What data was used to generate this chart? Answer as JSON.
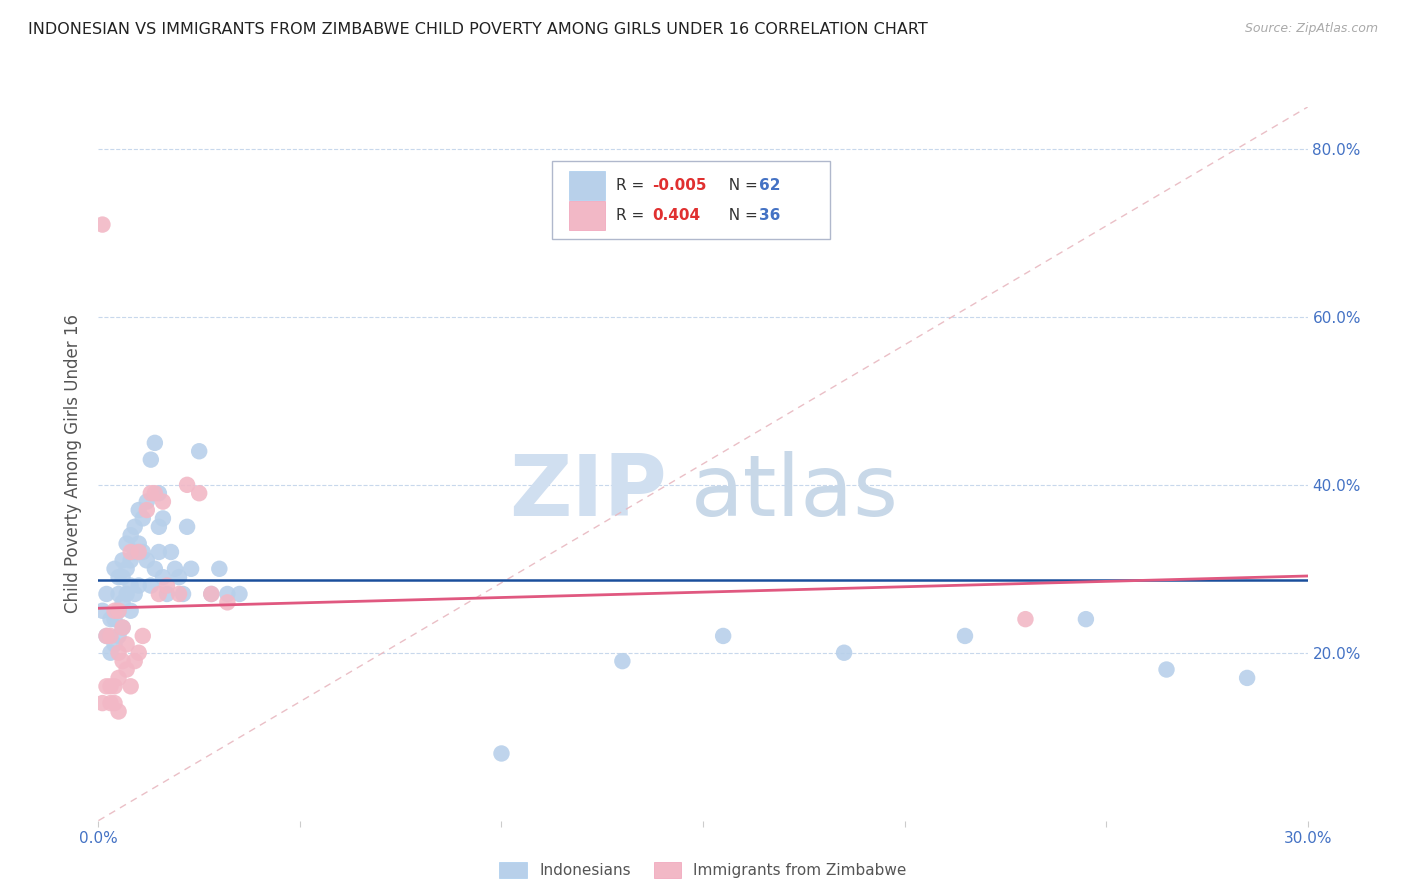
{
  "title": "INDONESIAN VS IMMIGRANTS FROM ZIMBABWE CHILD POVERTY AMONG GIRLS UNDER 16 CORRELATION CHART",
  "source": "Source: ZipAtlas.com",
  "ylabel": "Child Poverty Among Girls Under 16",
  "watermark_zip": "ZIP",
  "watermark_atlas": "atlas",
  "indonesian_color": "#b8d0ea",
  "zimbabwe_color": "#f2b8c6",
  "indonesian_line_color": "#1a4f9c",
  "zimbabwe_line_color": "#e05880",
  "diagonal_color": "#e8b8c0",
  "xlim": [
    0.0,
    0.3
  ],
  "ylim": [
    0.0,
    0.85
  ],
  "indonesian_x": [
    0.001,
    0.002,
    0.002,
    0.003,
    0.003,
    0.004,
    0.004,
    0.004,
    0.005,
    0.005,
    0.005,
    0.005,
    0.006,
    0.006,
    0.006,
    0.006,
    0.007,
    0.007,
    0.007,
    0.008,
    0.008,
    0.008,
    0.008,
    0.009,
    0.009,
    0.009,
    0.01,
    0.01,
    0.01,
    0.011,
    0.011,
    0.012,
    0.012,
    0.013,
    0.013,
    0.014,
    0.014,
    0.015,
    0.015,
    0.015,
    0.016,
    0.016,
    0.017,
    0.018,
    0.019,
    0.02,
    0.021,
    0.022,
    0.023,
    0.025,
    0.028,
    0.03,
    0.032,
    0.035,
    0.1,
    0.13,
    0.155,
    0.185,
    0.215,
    0.245,
    0.265,
    0.285
  ],
  "indonesian_y": [
    0.25,
    0.22,
    0.27,
    0.2,
    0.24,
    0.21,
    0.24,
    0.3,
    0.22,
    0.25,
    0.27,
    0.29,
    0.23,
    0.26,
    0.29,
    0.31,
    0.27,
    0.3,
    0.33,
    0.25,
    0.28,
    0.31,
    0.34,
    0.27,
    0.32,
    0.35,
    0.28,
    0.33,
    0.37,
    0.32,
    0.36,
    0.31,
    0.38,
    0.28,
    0.43,
    0.3,
    0.45,
    0.32,
    0.35,
    0.39,
    0.29,
    0.36,
    0.27,
    0.32,
    0.3,
    0.29,
    0.27,
    0.35,
    0.3,
    0.44,
    0.27,
    0.3,
    0.27,
    0.27,
    0.08,
    0.19,
    0.22,
    0.2,
    0.22,
    0.24,
    0.18,
    0.17
  ],
  "zimbabwe_x": [
    0.001,
    0.001,
    0.002,
    0.002,
    0.003,
    0.003,
    0.003,
    0.004,
    0.004,
    0.004,
    0.005,
    0.005,
    0.005,
    0.005,
    0.006,
    0.006,
    0.007,
    0.007,
    0.008,
    0.008,
    0.009,
    0.01,
    0.01,
    0.011,
    0.012,
    0.013,
    0.014,
    0.015,
    0.016,
    0.017,
    0.02,
    0.022,
    0.025,
    0.028,
    0.032,
    0.23
  ],
  "zimbabwe_y": [
    0.71,
    0.14,
    0.16,
    0.22,
    0.14,
    0.16,
    0.22,
    0.14,
    0.16,
    0.25,
    0.13,
    0.17,
    0.2,
    0.25,
    0.19,
    0.23,
    0.18,
    0.21,
    0.16,
    0.32,
    0.19,
    0.2,
    0.32,
    0.22,
    0.37,
    0.39,
    0.39,
    0.27,
    0.38,
    0.28,
    0.27,
    0.4,
    0.39,
    0.27,
    0.26,
    0.24
  ],
  "legend_r1": "-0.005",
  "legend_n1": "62",
  "legend_r2": "0.404",
  "legend_n2": "36"
}
